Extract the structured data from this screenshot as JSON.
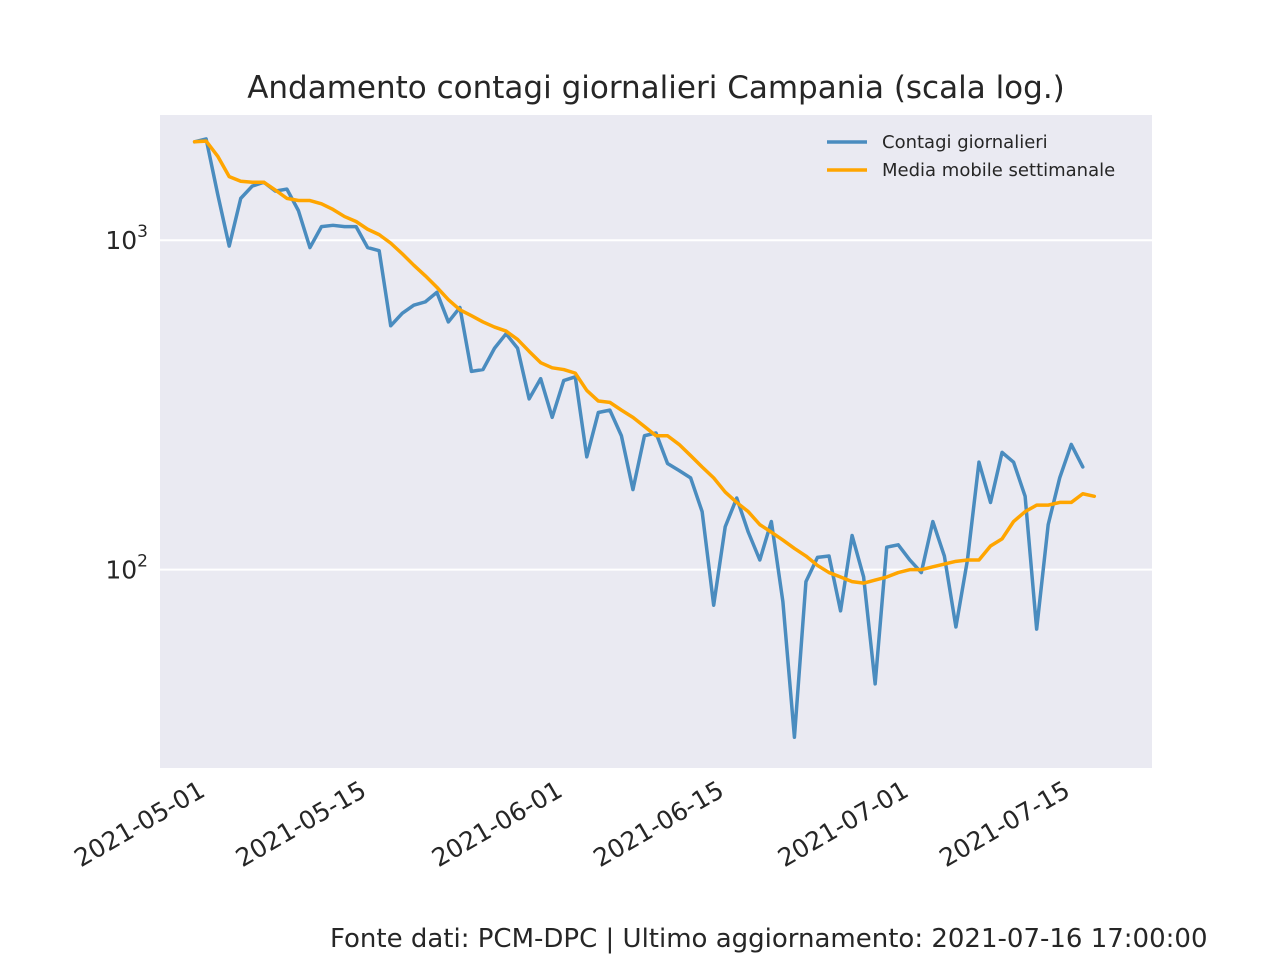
{
  "chart_data": {
    "type": "line",
    "title": "Andamento contagi giornalieri Campania (scala log.)",
    "xlabel": "",
    "ylabel": "",
    "yscale": "log",
    "grid": true,
    "legend_position": "top-right",
    "x_start": "2021-05-01",
    "x_end": "2021-07-19",
    "xlim": [
      "2021-04-28",
      "2021-07-23"
    ],
    "ylim": [
      25,
      2400
    ],
    "x_ticks": [
      "2021-05-01",
      "2021-05-15",
      "2021-06-01",
      "2021-06-15",
      "2021-07-01",
      "2021-07-15"
    ],
    "y_ticks": [
      {
        "value": 100,
        "base": "10",
        "exp": "2"
      },
      {
        "value": 1000,
        "base": "10",
        "exp": "3"
      }
    ],
    "series": [
      {
        "name": "Contagi giornalieri",
        "color": "#4a8cbf",
        "values": [
          1990,
          2030,
          1380,
          960,
          1340,
          1460,
          1500,
          1410,
          1430,
          1230,
          950,
          1100,
          1110,
          1100,
          1100,
          950,
          930,
          550,
          600,
          635,
          650,
          695,
          565,
          625,
          400,
          405,
          470,
          520,
          470,
          330,
          380,
          290,
          375,
          385,
          220,
          300,
          305,
          255,
          175,
          255,
          260,
          210,
          200,
          190,
          150,
          78,
          135,
          165,
          130,
          107,
          140,
          80,
          31,
          92,
          109,
          110,
          75,
          127,
          95,
          45,
          117,
          119,
          107,
          98,
          140,
          110,
          67,
          107,
          212,
          160,
          227,
          212,
          167,
          66,
          137,
          190,
          240,
          205
        ]
      },
      {
        "name": "Media mobile settimanale",
        "color": "#ffa500",
        "values": [
          1990,
          2000,
          1800,
          1560,
          1510,
          1500,
          1500,
          1420,
          1340,
          1320,
          1320,
          1290,
          1240,
          1180,
          1140,
          1080,
          1040,
          980,
          910,
          840,
          780,
          720,
          660,
          615,
          590,
          565,
          545,
          530,
          500,
          460,
          425,
          410,
          405,
          395,
          350,
          325,
          322,
          305,
          290,
          272,
          255,
          255,
          240,
          222,
          205,
          190,
          172,
          160,
          150,
          137,
          130,
          123,
          116,
          110,
          103,
          98,
          95,
          92,
          91,
          93,
          95,
          98,
          100,
          100,
          102,
          104,
          106,
          107,
          107,
          118,
          124,
          140,
          150,
          157,
          157,
          160,
          160,
          170,
          167
        ]
      }
    ],
    "axes_background": "#eaeaf2",
    "grid_color": "#ffffff"
  },
  "footer": {
    "text": "Fonte dati: PCM-DPC | Ultimo aggiornamento: 2021-07-16 17:00:00"
  }
}
